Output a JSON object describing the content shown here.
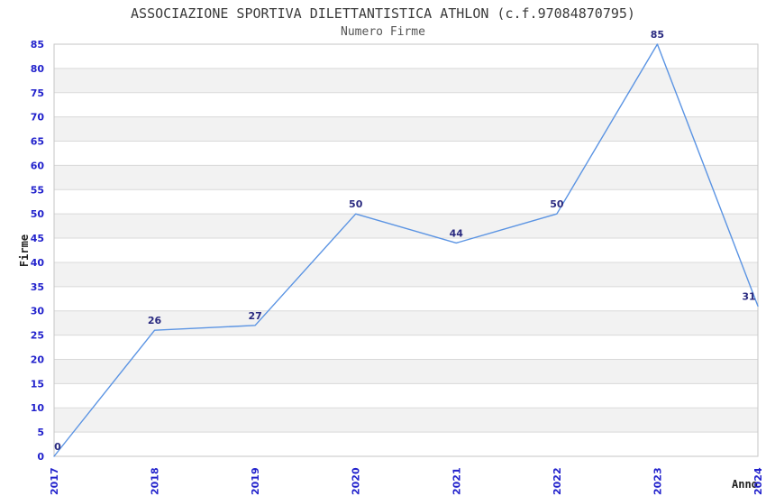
{
  "chart_data": {
    "type": "line",
    "title": "ASSOCIAZIONE SPORTIVA DILETTANTISTICA ATHLON (c.f.97084870795)",
    "subtitle": "Numero Firme",
    "xlabel": "Anno",
    "ylabel": "Firme",
    "categories": [
      "2017",
      "2018",
      "2019",
      "2020",
      "2021",
      "2022",
      "2023",
      "2024"
    ],
    "values": [
      0,
      26,
      27,
      50,
      44,
      50,
      85,
      31
    ],
    "point_labels": [
      "0",
      "26",
      "27",
      "50",
      "44",
      "50",
      "85",
      "31"
    ],
    "ylim": [
      0,
      85
    ],
    "ytick_step": 5,
    "grid": "horizontal",
    "legend": "none",
    "background_bands": "alternating horizontal stripes every 5 units",
    "colors": {
      "line": "#5b94e3",
      "tick_label": "#2222cc",
      "point_label": "#2a2a80",
      "title": "#3a3a3a",
      "subtitle": "#555555",
      "axis_label": "#222222",
      "band_light": "#ffffff",
      "band_dark": "#f2f2f2",
      "grid_line": "#d9d9d9",
      "plot_border": "#c6c6c6"
    }
  }
}
